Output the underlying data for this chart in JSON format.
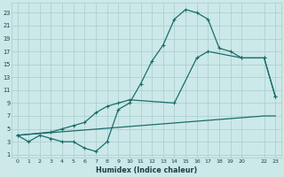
{
  "xlabel": "Humidex (Indice chaleur)",
  "bg_color": "#cce8e8",
  "line_color": "#1a6e6a",
  "grid_color": "#aacccc",
  "xlim": [
    -0.5,
    23.5
  ],
  "ylim": [
    0.5,
    24.5
  ],
  "xticks": [
    0,
    1,
    2,
    3,
    4,
    5,
    6,
    7,
    8,
    9,
    10,
    11,
    12,
    13,
    14,
    15,
    16,
    17,
    18,
    19,
    20,
    22,
    23
  ],
  "xtick_labels": [
    "0",
    "1",
    "2",
    "3",
    "4",
    "5",
    "6",
    "7",
    "8",
    "9",
    "10",
    "11",
    "12",
    "13",
    "14",
    "15",
    "16",
    "17",
    "18",
    "19",
    "20",
    "22",
    "23"
  ],
  "yticks": [
    1,
    3,
    5,
    7,
    9,
    11,
    13,
    15,
    17,
    19,
    21,
    23
  ],
  "line1_x": [
    0,
    1,
    2,
    3,
    4,
    5,
    6,
    7,
    8,
    9,
    10,
    11,
    12,
    13,
    14,
    15,
    16,
    17,
    18,
    19,
    20,
    22,
    23
  ],
  "line1_y": [
    4,
    3,
    4,
    3.5,
    3,
    3,
    2,
    1.5,
    3,
    8,
    9,
    12,
    15.5,
    18,
    22,
    23.5,
    23,
    22,
    17.5,
    17,
    16,
    16,
    10
  ],
  "line2_x": [
    0,
    3,
    4,
    5,
    6,
    7,
    8,
    9,
    10,
    14,
    16,
    17,
    20,
    22,
    23
  ],
  "line2_y": [
    4,
    4.5,
    5,
    5.5,
    6,
    7.5,
    8.5,
    9,
    9.5,
    9,
    16,
    17,
    16,
    16,
    10
  ],
  "line3_x": [
    0,
    22,
    23
  ],
  "line3_y": [
    4,
    7,
    7
  ]
}
